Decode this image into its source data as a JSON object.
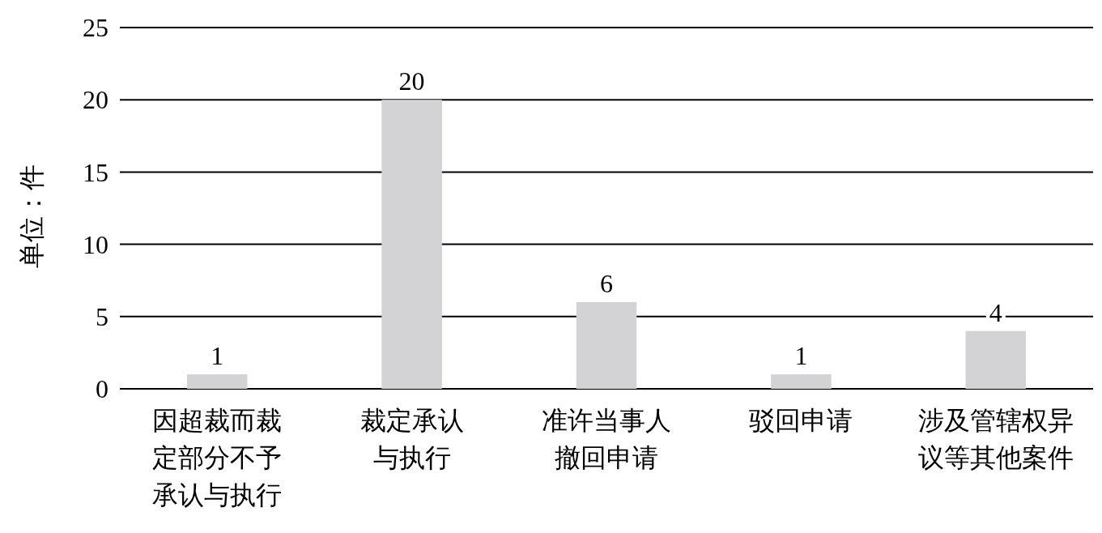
{
  "chart_data": {
    "type": "bar",
    "ylabel": "单位：件",
    "categories": [
      "因超裁而裁定部分不予承认与执行",
      "裁定承认与执行",
      "准许当事人撤回申请",
      "驳回申请",
      "涉及管辖权异议等其他案件"
    ],
    "values": [
      1,
      20,
      6,
      1,
      4
    ],
    "color": "#d3d3d5",
    "ylim": [
      0,
      25
    ],
    "yticks": [
      0,
      5,
      10,
      15,
      20,
      25
    ],
    "grid": "y",
    "data_labels": true
  }
}
